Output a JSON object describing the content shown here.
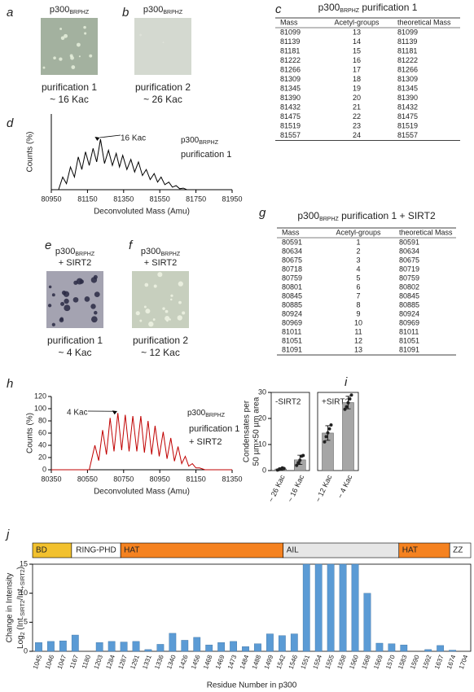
{
  "panel_letters": [
    "a",
    "b",
    "c",
    "d",
    "e",
    "f",
    "g",
    "h",
    "i",
    "j"
  ],
  "images": [
    {
      "title": "p300",
      "title_sub": "BRPHZ",
      "caption": [
        "purification 1",
        "~ 16 Kac"
      ]
    },
    {
      "title": "p300",
      "title_sub": "BRPHZ",
      "caption": [
        "purification 2",
        "~ 26 Kac"
      ]
    },
    {
      "title": "p300",
      "title_sub": "BRPHZ",
      "title_line2": "+ SIRT2",
      "caption": [
        "purification 1",
        "~ 4 Kac"
      ]
    },
    {
      "title": "p300",
      "title_sub": "BRPHZ",
      "title_line2": "+ SIRT2",
      "caption": [
        "purification 2",
        "~ 12 Kac"
      ]
    }
  ],
  "tables": [
    {
      "title": "p300",
      "title_sub": "BRPHZ",
      "title_rest": " purification 1",
      "columns": [
        "Mass",
        "Acetyl-groups",
        "theoretical Mass"
      ],
      "rows": [
        [
          81099,
          13,
          81099
        ],
        [
          81139,
          14,
          81139
        ],
        [
          81181,
          15,
          81181
        ],
        [
          81222,
          16,
          81222
        ],
        [
          81266,
          17,
          81266
        ],
        [
          81309,
          18,
          81309
        ],
        [
          81345,
          19,
          81345
        ],
        [
          81390,
          20,
          81390
        ],
        [
          81432,
          21,
          81432
        ],
        [
          81475,
          22,
          81475
        ],
        [
          81519,
          23,
          81519
        ],
        [
          81557,
          24,
          81557
        ]
      ]
    },
    {
      "title": "p300",
      "title_sub": "BRPHZ",
      "title_rest": " purification 1 + SIRT2",
      "columns": [
        "Mass",
        "Acetyl-groups",
        "theoretical Mass"
      ],
      "rows": [
        [
          80591,
          1,
          80591
        ],
        [
          80634,
          2,
          80634
        ],
        [
          80675,
          3,
          80675
        ],
        [
          80718,
          4,
          80719
        ],
        [
          80759,
          5,
          80759
        ],
        [
          80801,
          6,
          80802
        ],
        [
          80845,
          7,
          80845
        ],
        [
          80885,
          8,
          80885
        ],
        [
          80924,
          9,
          80924
        ],
        [
          80969,
          10,
          80969
        ],
        [
          81011,
          11,
          81011
        ],
        [
          81051,
          12,
          81051
        ],
        [
          81091,
          13,
          81091
        ]
      ]
    }
  ],
  "chart_data": [
    {
      "type": "line",
      "title": "p300",
      "title_sub": "BRPHZ",
      "annotations": [
        "16 Kac",
        "purification 1"
      ],
      "xlabel": "Deconvoluted Mass (Amu)",
      "ylabel": "Counts (%)",
      "x": [
        80950,
        80990,
        81013,
        81034,
        81056,
        81078,
        81099,
        81119,
        81139,
        81160,
        81181,
        81201,
        81222,
        81244,
        81266,
        81288,
        81309,
        81327,
        81345,
        81368,
        81390,
        81411,
        81432,
        81454,
        81475,
        81497,
        81519,
        81538,
        81557,
        81578,
        81600,
        81620,
        81640,
        81660,
        81680,
        81700,
        81750,
        81950
      ],
      "series": [
        {
          "color": "#000000",
          "values": [
            0,
            0,
            25,
            12,
            45,
            25,
            65,
            40,
            75,
            48,
            82,
            55,
            100,
            52,
            78,
            48,
            72,
            45,
            68,
            40,
            60,
            35,
            55,
            28,
            40,
            20,
            32,
            15,
            25,
            10,
            15,
            5,
            8,
            2,
            3,
            0,
            0,
            0
          ]
        }
      ],
      "xlim": [
        80950,
        81950
      ],
      "xticks": [
        80950,
        81150,
        81350,
        81550,
        81750,
        81950
      ],
      "ylim": [
        0,
        150
      ]
    },
    {
      "type": "line",
      "title": "p300",
      "title_sub": "BRPHZ",
      "annotations": [
        "4 Kac",
        "purification 1",
        "+ SIRT2"
      ],
      "xlabel": "Deconvoluted Mass (Amu)",
      "ylabel": "Counts (%)",
      "x": [
        80350,
        80560,
        80591,
        80612,
        80634,
        80655,
        80675,
        80697,
        80718,
        80739,
        80759,
        80780,
        80801,
        80823,
        80845,
        80865,
        80885,
        80905,
        80924,
        80947,
        80969,
        80990,
        81011,
        81031,
        81051,
        81071,
        81091,
        81110,
        81130,
        81150,
        81170,
        81200,
        81350
      ],
      "series": [
        {
          "color": "#c00000",
          "values": [
            0,
            0,
            40,
            15,
            65,
            25,
            85,
            30,
            93,
            32,
            90,
            30,
            88,
            30,
            88,
            28,
            80,
            25,
            72,
            22,
            62,
            18,
            52,
            14,
            38,
            10,
            22,
            6,
            10,
            3,
            3,
            0,
            0
          ]
        }
      ],
      "xlim": [
        80350,
        81350
      ],
      "xticks": [
        80350,
        80550,
        80750,
        80950,
        81150,
        81350
      ],
      "ylim": [
        0,
        120
      ],
      "yticks": [
        0,
        20,
        40,
        60,
        80,
        100,
        120
      ]
    },
    {
      "type": "bar",
      "ylabel": [
        "Condensates per",
        "50 µm×50 µm area"
      ],
      "color": "#a6a6a6",
      "ylim": [
        0,
        30
      ],
      "yticks": [
        0,
        10,
        20,
        30
      ],
      "groups": [
        {
          "name": "-SIRT2",
          "categories": [
            "~ 26 Kac",
            "~ 16 Kac"
          ],
          "values": [
            0.6,
            4.1
          ],
          "errors": [
            0.5,
            1.8
          ],
          "points": [
            [
              0.2,
              0.4,
              0.6,
              1.0,
              0.8
            ],
            [
              2.0,
              3.0,
              4.0,
              5.5,
              5.8
            ]
          ]
        },
        {
          "name": "+SIRT2",
          "categories": [
            "~ 12 Kac",
            "~ 4 Kac"
          ],
          "values": [
            14.4,
            26.1
          ],
          "errors": [
            2.8,
            2.4
          ],
          "points": [
            [
              11.0,
              13.0,
              14.5,
              16.0,
              17.5
            ],
            [
              23.5,
              24.5,
              26.0,
              27.5,
              29.0
            ]
          ]
        }
      ]
    },
    {
      "type": "bar",
      "xlabel": "Residue Number in p300",
      "ylabel": "Change in Intensity",
      "ylabel2": [
        "Log",
        "2",
        " (Int",
        "-SIRT2",
        "/Int",
        "+SIRT2",
        ")"
      ],
      "domains": [
        {
          "name": "BD",
          "color": "#f2c12e"
        },
        {
          "name": "RING-PHD",
          "color": "#ffffff"
        },
        {
          "name": "HAT",
          "color": "#f58220"
        },
        {
          "name": "AIL",
          "color": "#e6e6e6"
        },
        {
          "name": "HAT",
          "color": "#f58220"
        },
        {
          "name": "ZZ",
          "color": "#ffffff"
        }
      ],
      "categories": [
        "1045",
        "1046",
        "1047",
        "1167",
        "1180",
        "1203",
        "1284",
        "1287",
        "1291",
        "1331",
        "1336",
        "1340",
        "1426",
        "1456",
        "1468",
        "1469",
        "1473",
        "1484",
        "1488",
        "1499",
        "1542",
        "1546",
        "1551",
        "1554",
        "1555",
        "1558",
        "1560",
        "1568",
        "1569",
        "1570",
        "1583",
        "1590",
        "1592",
        "1637",
        "1674",
        "1704"
      ],
      "values": [
        1.5,
        1.7,
        1.8,
        2.8,
        0,
        1.5,
        1.7,
        1.6,
        1.7,
        0.3,
        1.2,
        3.1,
        1.9,
        2.4,
        1.1,
        1.5,
        1.7,
        0.8,
        1.3,
        3.0,
        2.7,
        3.0,
        15,
        15,
        15,
        15,
        15,
        10,
        1.4,
        1.3,
        1.1,
        0,
        0.3,
        1.0,
        0.2,
        0
      ],
      "color": "#5b9bd5",
      "ylim": [
        0,
        15
      ],
      "yticks": [
        0,
        5,
        10,
        15
      ]
    }
  ]
}
